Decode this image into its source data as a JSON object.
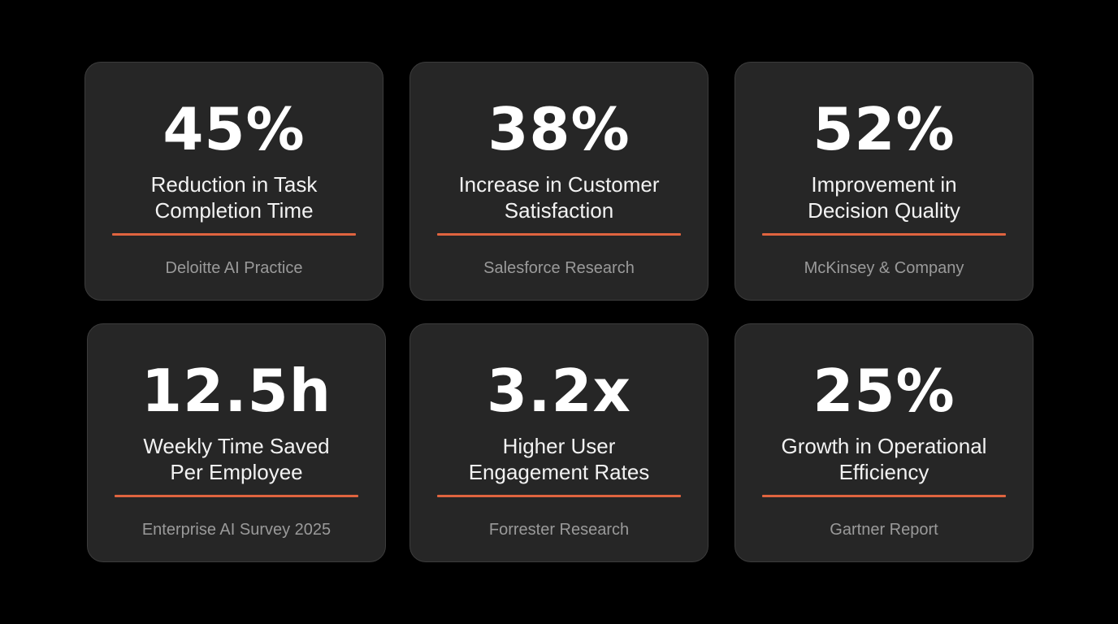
{
  "theme": {
    "background": "#000000",
    "card_background": "#262626",
    "card_border": "#3c3c3c",
    "accent": "#e0643f",
    "value_color": "#ffffff",
    "source_color": "#9a9a9a"
  },
  "stats": [
    {
      "value": "45%",
      "label_lines": [
        "Reduction in Task",
        "Completion Time"
      ],
      "source": "Deloitte AI Practice"
    },
    {
      "value": "38%",
      "label_lines": [
        "Increase in Customer",
        "Satisfaction"
      ],
      "source": "Salesforce Research"
    },
    {
      "value": "52%",
      "label_lines": [
        "Improvement in",
        "Decision Quality"
      ],
      "source": "McKinsey & Company"
    },
    {
      "value": "12.5h",
      "label_lines": [
        "Weekly Time Saved",
        "Per Employee"
      ],
      "source": "Enterprise AI Survey 2025"
    },
    {
      "value": "3.2x",
      "label_lines": [
        "Higher User",
        "Engagement Rates"
      ],
      "source": "Forrester Research"
    },
    {
      "value": "25%",
      "label_lines": [
        "Growth in Operational",
        "Efficiency"
      ],
      "source": "Gartner Report"
    }
  ]
}
